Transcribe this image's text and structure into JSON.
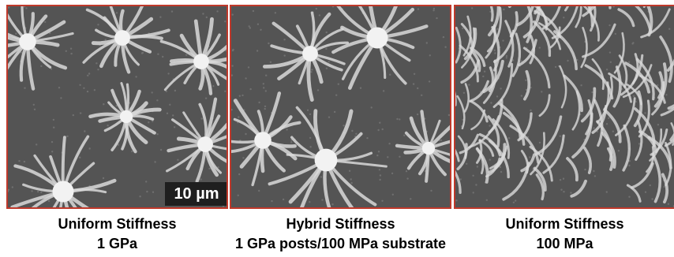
{
  "panels": [
    {
      "title": "Uniform Stiffness",
      "subtitle": "1 GPa"
    },
    {
      "title": "Hybrid Stiffness",
      "subtitle": "1 GPa posts/100 MPa substrate"
    },
    {
      "title": "Uniform Stiffness",
      "subtitle": "100 MPa"
    }
  ],
  "scale_bar": {
    "label": "10 µm"
  },
  "colors": {
    "panel_border": "#c0392b",
    "background": "#545454",
    "fibers": "#d9d9d9"
  }
}
